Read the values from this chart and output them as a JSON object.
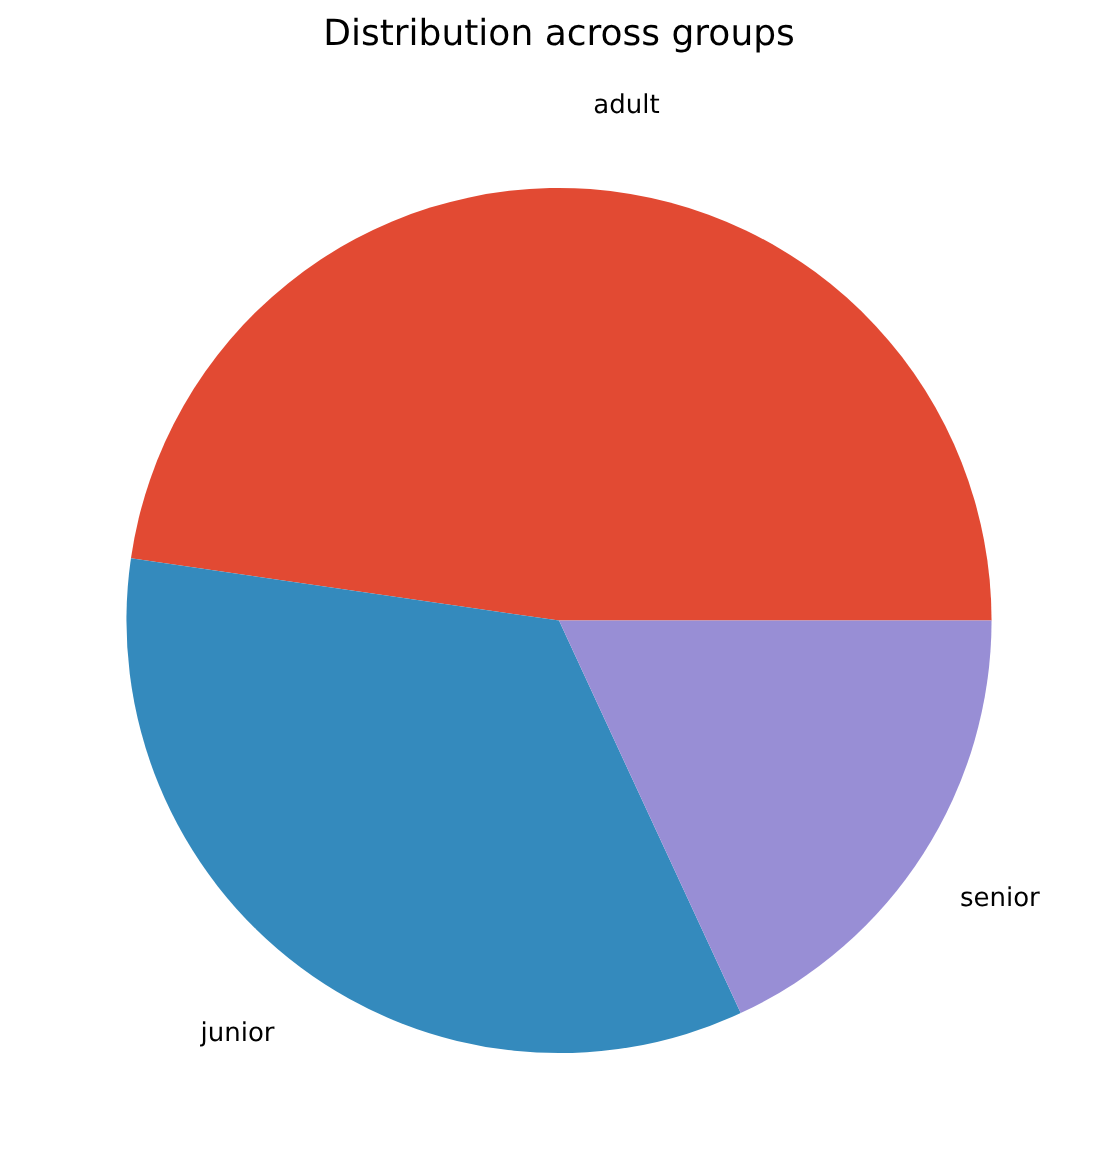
{
  "chart_data": {
    "type": "pie",
    "title": "Distribution across groups",
    "categories": [
      "adult",
      "junior",
      "senior"
    ],
    "values": [
      47.7,
      34.2,
      18.1
    ],
    "colors": [
      "#e24a33",
      "#348abd",
      "#988ed5"
    ]
  }
}
